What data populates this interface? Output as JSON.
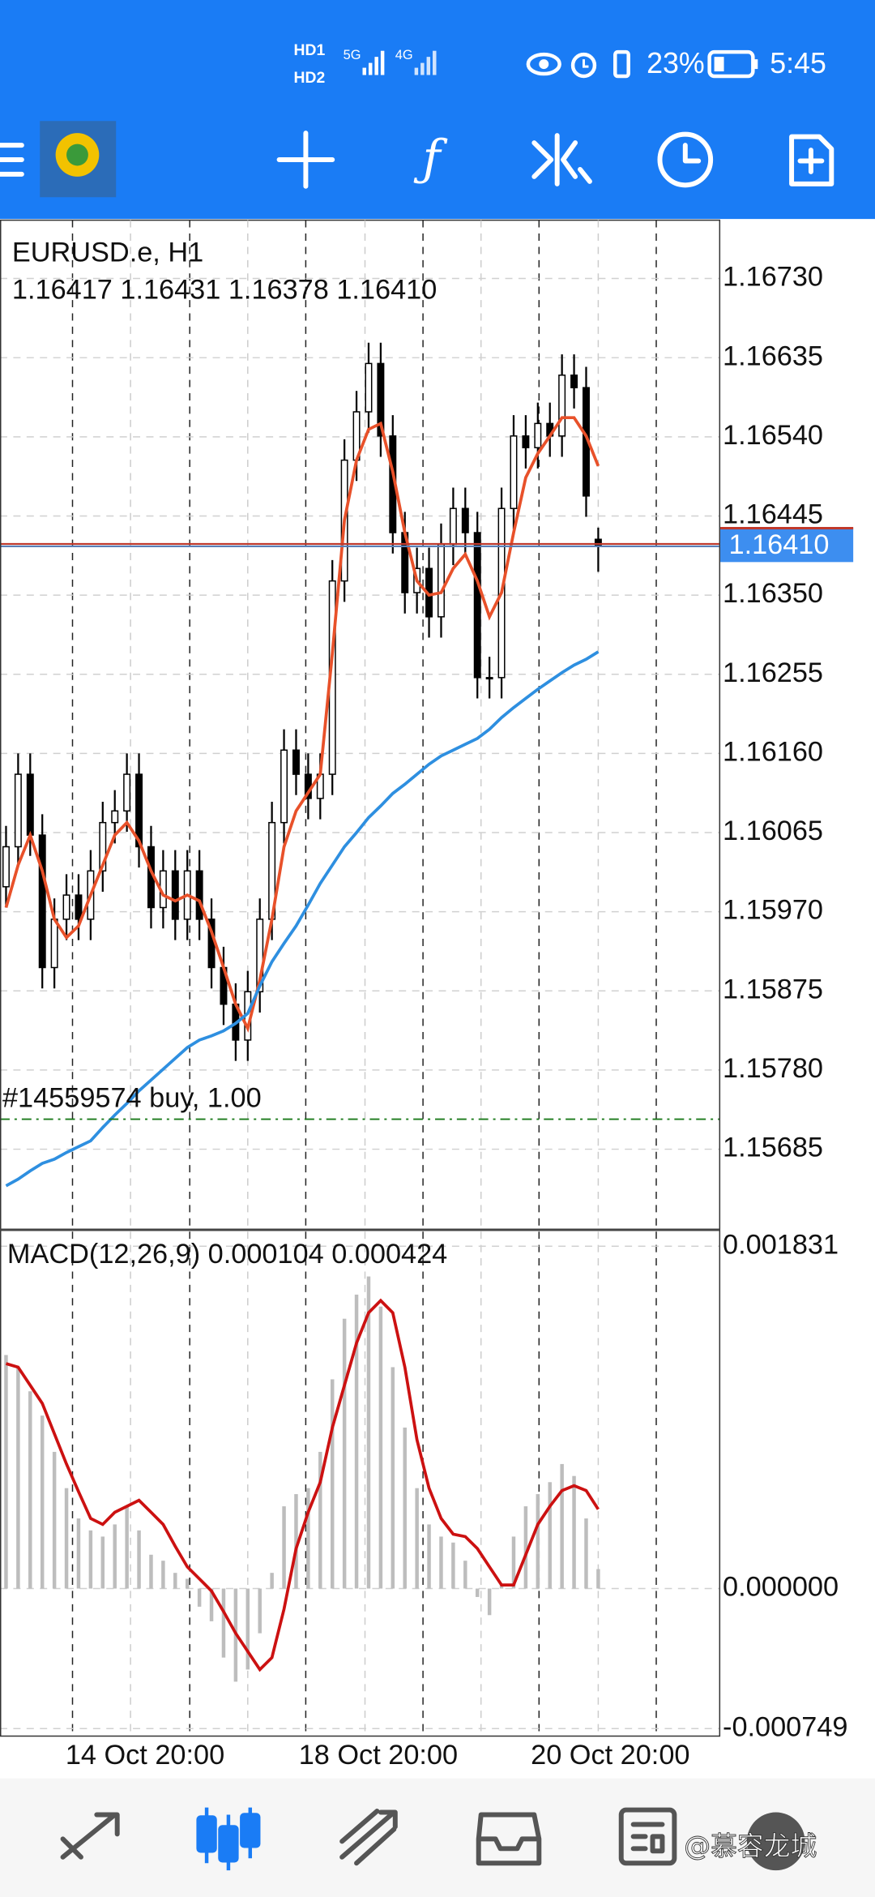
{
  "status_bar": {
    "sim1": "HD1",
    "sim2": "HD2",
    "network1": "5G",
    "network2": "4G",
    "battery": "23%",
    "time": "5:45"
  },
  "watermark": "@慕容龙城",
  "chart_data": [
    {
      "type": "candlestick",
      "title": "EURUSD.e, H1",
      "subtitle": "1.16417 1.16431 1.16378 1.16410",
      "open": [
        1.16,
        1.16048,
        1.16135,
        1.16062,
        1.15903,
        1.15961,
        1.1599,
        1.15961,
        1.16019,
        1.16077,
        1.16091,
        1.16135,
        1.16048,
        1.15975,
        1.16019,
        1.15961,
        1.16019,
        1.15961,
        1.15903,
        1.15859,
        1.15816,
        1.15874,
        1.15961,
        1.16077,
        1.16164,
        1.16135,
        1.16106,
        1.16135,
        1.16367,
        1.16512,
        1.1657,
        1.16628,
        1.16541,
        1.16425,
        1.16353,
        1.16382,
        1.16324,
        1.16411,
        1.16454,
        1.16425,
        1.16251,
        1.16251,
        1.16454,
        1.16541,
        1.16527,
        1.16556,
        1.16541,
        1.16614,
        1.16599,
        1.16417
      ],
      "high": [
        1.16073,
        1.1616,
        1.1616,
        1.16087,
        1.15986,
        1.16015,
        1.16015,
        1.16044,
        1.16102,
        1.16116,
        1.1616,
        1.1616,
        1.16073,
        1.16044,
        1.16044,
        1.16044,
        1.16044,
        1.15986,
        1.15928,
        1.15884,
        1.15899,
        1.15986,
        1.16102,
        1.16189,
        1.16189,
        1.1616,
        1.1616,
        1.16392,
        1.16537,
        1.16595,
        1.16653,
        1.16653,
        1.16566,
        1.1645,
        1.16407,
        1.16407,
        1.16436,
        1.16479,
        1.16479,
        1.1645,
        1.16276,
        1.16479,
        1.16566,
        1.16566,
        1.16581,
        1.16581,
        1.16639,
        1.16639,
        1.16624,
        1.16431
      ],
      "low": [
        1.15975,
        1.16023,
        1.16037,
        1.15878,
        1.15878,
        1.15936,
        1.15936,
        1.15936,
        1.15994,
        1.16052,
        1.16066,
        1.16023,
        1.1595,
        1.1595,
        1.15936,
        1.15936,
        1.15936,
        1.15878,
        1.15834,
        1.15791,
        1.15791,
        1.15849,
        1.15936,
        1.16052,
        1.1611,
        1.16081,
        1.16081,
        1.1611,
        1.16342,
        1.16487,
        1.16545,
        1.16516,
        1.164,
        1.16328,
        1.16328,
        1.16299,
        1.16299,
        1.16386,
        1.164,
        1.16226,
        1.16226,
        1.16226,
        1.16429,
        1.16502,
        1.16502,
        1.16516,
        1.16516,
        1.16574,
        1.16444,
        1.16378
      ],
      "close": [
        1.16048,
        1.16135,
        1.16062,
        1.15903,
        1.15961,
        1.1599,
        1.15961,
        1.16019,
        1.16077,
        1.16091,
        1.16135,
        1.16048,
        1.15975,
        1.16019,
        1.15961,
        1.16019,
        1.15961,
        1.15903,
        1.15859,
        1.15816,
        1.15874,
        1.15961,
        1.16077,
        1.16164,
        1.16135,
        1.16106,
        1.16135,
        1.16367,
        1.16512,
        1.1657,
        1.16628,
        1.16541,
        1.16425,
        1.16353,
        1.16382,
        1.16324,
        1.16411,
        1.16454,
        1.16425,
        1.16251,
        1.16251,
        1.16454,
        1.16541,
        1.16527,
        1.16556,
        1.16541,
        1.16614,
        1.16599,
        1.16469,
        1.1641
      ],
      "series": [
        {
          "color": "#e8512a",
          "values": [
            1.15975,
            1.16026,
            1.16062,
            1.16019,
            1.15961,
            1.15939,
            1.15953,
            1.1599,
            1.16026,
            1.16062,
            1.16077,
            1.16055,
            1.16019,
            1.1599,
            1.15983,
            1.1599,
            1.15983,
            1.15946,
            1.15903,
            1.15859,
            1.1583,
            1.15888,
            1.15961,
            1.16048,
            1.16091,
            1.16113,
            1.16135,
            1.1628,
            1.1644,
            1.16512,
            1.16549,
            1.16556,
            1.16498,
            1.16425,
            1.16367,
            1.1635,
            1.16353,
            1.16382,
            1.16399,
            1.16367,
            1.16324,
            1.16353,
            1.16425,
            1.16491,
            1.1652,
            1.16541,
            1.16563,
            1.16563,
            1.16541,
            1.16505
          ]
        },
        {
          "color": "#2e8fe0",
          "values": [
            1.15641,
            1.15649,
            1.15659,
            1.15668,
            1.15673,
            1.15681,
            1.15688,
            1.15695,
            1.15711,
            1.15726,
            1.1574,
            1.15755,
            1.15768,
            1.15781,
            1.15794,
            1.15807,
            1.15816,
            1.15821,
            1.15827,
            1.15836,
            1.15848,
            1.15881,
            1.1591,
            1.15932,
            1.15953,
            1.15978,
            1.16004,
            1.16026,
            1.16048,
            1.16065,
            1.16083,
            1.16097,
            1.16112,
            1.16123,
            1.16135,
            1.16147,
            1.16157,
            1.16164,
            1.16171,
            1.16178,
            1.16189,
            1.16203,
            1.16215,
            1.16226,
            1.16237,
            1.16247,
            1.16257,
            1.16266,
            1.16273,
            1.16282
          ]
        }
      ],
      "ylim": [
        1.15589,
        1.168
      ],
      "yticks": [
        {
          "value": 1.1673,
          "label": "1.16730"
        },
        1.16635,
        {
          "value": 1.1654,
          "label": "1.16540"
        },
        1.16445,
        {
          "value": 1.1635,
          "label": "1.16350"
        },
        1.16255,
        {
          "value": 1.1616,
          "label": "1.16160"
        },
        1.16065,
        {
          "value": 1.1597,
          "label": "1.15970"
        },
        1.15875,
        {
          "value": 1.1578,
          "label": "1.15780"
        },
        1.15685
      ],
      "current_price": {
        "value": 1.1641,
        "label": "1.16410"
      },
      "order": {
        "value": 1.15721,
        "label": "#14559574 buy, 1.00"
      },
      "time_labels": [
        "14 Oct 20:00",
        "18 Oct 20:00",
        "20 Oct 20:00"
      ],
      "grid": true
    },
    {
      "type": "macd",
      "title": "MACD(12,26,9) 0.000104 0.000424",
      "series": [
        {
          "color": "#bdbdbd",
          "values": [
            0.001249,
            0.001184,
            0.001055,
            0.000925,
            0.000731,
            0.000537,
            0.000375,
            0.000311,
            0.000278,
            0.000343,
            0.00044,
            0.000311,
            0.000181,
            0.000149,
            8.4e-05,
            5.2e-05,
            -9.7e-05,
            -0.000175,
            -0.000369,
            -0.000498,
            -0.000433,
            -0.000239,
            8.4e-05,
            0.00044,
            0.000505,
            0.000537,
            0.000731,
            0.001119,
            0.001443,
            0.001572,
            0.001669,
            0.001508,
            0.001184,
            0.000861,
            0.000537,
            0.000343,
            0.000278,
            0.000246,
            0.000149,
            -4.5e-05,
            -0.000142,
            1.9e-05,
            0.000278,
            0.00044,
            0.000505,
            0.000569,
            0.000666,
            0.000602,
            0.000375,
            0.000104
          ]
        },
        {
          "color": "#cc1111",
          "values": [
            0.001203,
            0.001184,
            0.001087,
            0.00099,
            0.000828,
            0.000666,
            0.000518,
            0.000375,
            0.000343,
            0.000408,
            0.00044,
            0.000472,
            0.000408,
            0.000343,
            0.000226,
            0.000116,
            5.2e-05,
            -1.3e-05,
            -0.000123,
            -0.000239,
            -0.000336,
            -0.000433,
            -0.000369,
            -0.00011,
            0.000214,
            0.000408,
            0.000569,
            0.000861,
            0.001087,
            0.001313,
            0.001475,
            0.00154,
            0.001475,
            0.001184,
            0.000796,
            0.000537,
            0.000375,
            0.000291,
            0.000278,
            0.000214,
            0.000116,
            1.9e-05,
            1.9e-05,
            0.000181,
            0.000343,
            0.00044,
            0.000524,
            0.00055,
            0.000524,
            0.000424
          ]
        }
      ],
      "ylim": [
        -0.000789,
        0.001909
      ],
      "yticks": [
        0.001831,
        {
          "value": 0,
          "label": "0.000000"
        },
        -0.000749
      ],
      "grid": true
    }
  ]
}
